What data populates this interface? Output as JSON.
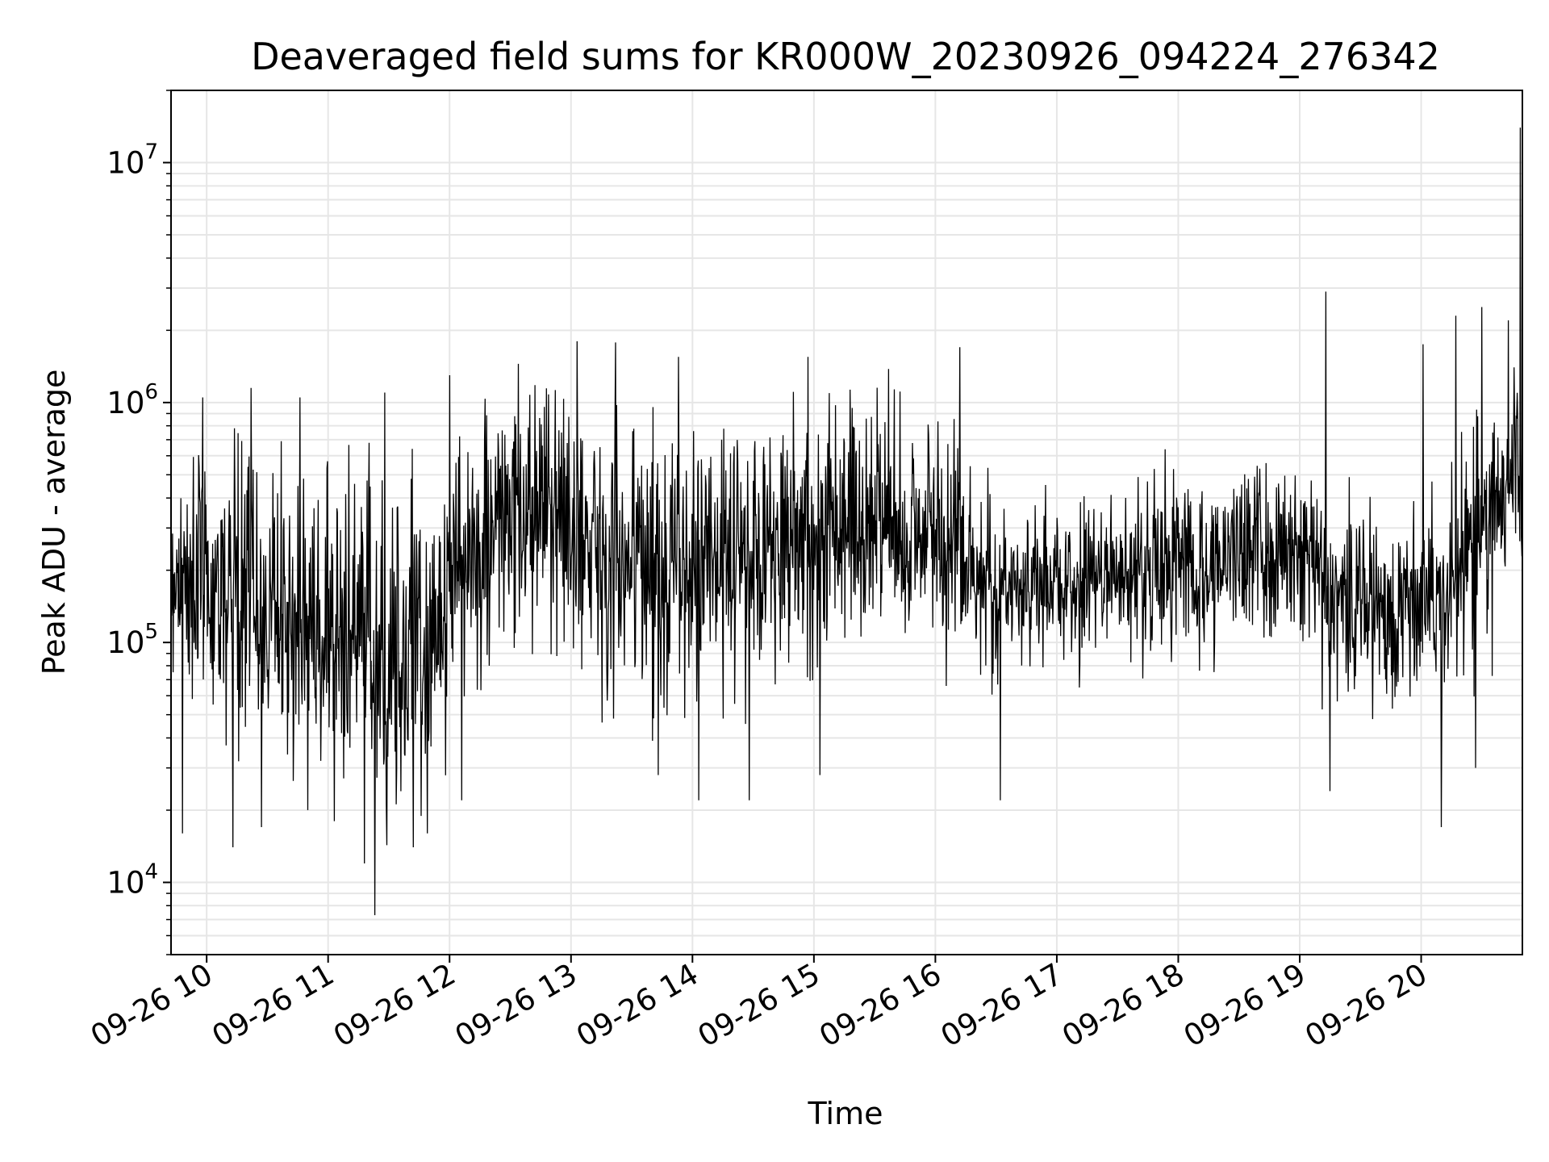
{
  "chart_data": {
    "type": "line",
    "title": "Deaveraged field sums for KR000W_20230926_094224_276342",
    "xlabel": "Time",
    "ylabel": "Peak ADU - average",
    "y_scale": "log",
    "grid": true,
    "line_color": "#000000",
    "grid_color": "#e6e6e6",
    "xlim": [
      "2023-09-26T09:42:24",
      "2023-09-26T20:50:00"
    ],
    "ylim": [
      5000,
      20000000
    ],
    "x_ticks": [
      {
        "value": "2023-09-26T10:00",
        "label": "09-26 10"
      },
      {
        "value": "2023-09-26T11:00",
        "label": "09-26 11"
      },
      {
        "value": "2023-09-26T12:00",
        "label": "09-26 12"
      },
      {
        "value": "2023-09-26T13:00",
        "label": "09-26 13"
      },
      {
        "value": "2023-09-26T14:00",
        "label": "09-26 14"
      },
      {
        "value": "2023-09-26T15:00",
        "label": "09-26 15"
      },
      {
        "value": "2023-09-26T16:00",
        "label": "09-26 16"
      },
      {
        "value": "2023-09-26T17:00",
        "label": "09-26 17"
      },
      {
        "value": "2023-09-26T18:00",
        "label": "09-26 18"
      },
      {
        "value": "2023-09-26T19:00",
        "label": "09-26 19"
      },
      {
        "value": "2023-09-26T20:00",
        "label": "09-26 20"
      }
    ],
    "y_ticks": [
      {
        "value": 10000,
        "base": "10",
        "exp": "4"
      },
      {
        "value": 100000,
        "base": "10",
        "exp": "5"
      },
      {
        "value": 1000000,
        "base": "10",
        "exp": "6"
      },
      {
        "value": 10000000,
        "base": "10",
        "exp": "7"
      }
    ],
    "series": [
      {
        "x": [
          "2023-09-26T09:42",
          "2023-09-26T09:50",
          "2023-09-26T10:00",
          "2023-09-26T10:10",
          "2023-09-26T10:20",
          "2023-09-26T10:30",
          "2023-09-26T10:40",
          "2023-09-26T10:50",
          "2023-09-26T11:00",
          "2023-09-26T11:10",
          "2023-09-26T11:20",
          "2023-09-26T11:30",
          "2023-09-26T11:40",
          "2023-09-26T11:50",
          "2023-09-26T12:00",
          "2023-09-26T12:10",
          "2023-09-26T12:20",
          "2023-09-26T12:30",
          "2023-09-26T12:40",
          "2023-09-26T12:50",
          "2023-09-26T13:00",
          "2023-09-26T13:10",
          "2023-09-26T13:20",
          "2023-09-26T13:30",
          "2023-09-26T13:40",
          "2023-09-26T13:50",
          "2023-09-26T14:00",
          "2023-09-26T14:10",
          "2023-09-26T14:20",
          "2023-09-26T14:30",
          "2023-09-26T14:40",
          "2023-09-26T14:50",
          "2023-09-26T15:00",
          "2023-09-26T15:10",
          "2023-09-26T15:20",
          "2023-09-26T15:30",
          "2023-09-26T15:40",
          "2023-09-26T15:50",
          "2023-09-26T16:00",
          "2023-09-26T16:10",
          "2023-09-26T16:20",
          "2023-09-26T16:30",
          "2023-09-26T16:40",
          "2023-09-26T16:50",
          "2023-09-26T17:00",
          "2023-09-26T17:10",
          "2023-09-26T17:20",
          "2023-09-26T17:30",
          "2023-09-26T17:40",
          "2023-09-26T17:50",
          "2023-09-26T18:00",
          "2023-09-26T18:10",
          "2023-09-26T18:20",
          "2023-09-26T18:30",
          "2023-09-26T18:40",
          "2023-09-26T18:50",
          "2023-09-26T19:00",
          "2023-09-26T19:10",
          "2023-09-26T19:20",
          "2023-09-26T19:30",
          "2023-09-26T19:40",
          "2023-09-26T19:50",
          "2023-09-26T20:00",
          "2023-09-26T20:10",
          "2023-09-26T20:20",
          "2023-09-26T20:30",
          "2023-09-26T20:40",
          "2023-09-26T20:50"
        ],
        "y_center": [
          200000,
          190000,
          170000,
          160000,
          150000,
          140000,
          130000,
          120000,
          110000,
          110000,
          100000,
          95000,
          90000,
          110000,
          160000,
          220000,
          290000,
          320000,
          330000,
          320000,
          310000,
          270000,
          240000,
          220000,
          210000,
          200000,
          200000,
          210000,
          230000,
          250000,
          270000,
          280000,
          290000,
          300000,
          310000,
          310000,
          300000,
          290000,
          280000,
          250000,
          210000,
          180000,
          170000,
          170000,
          170000,
          175000,
          180000,
          190000,
          200000,
          210000,
          210000,
          210000,
          220000,
          240000,
          250000,
          240000,
          220000,
          190000,
          170000,
          150000,
          140000,
          140000,
          150000,
          170000,
          220000,
          300000,
          420000,
          550000
        ],
        "y_low": [
          60000,
          50000,
          40000,
          40000,
          35000,
          35000,
          30000,
          28000,
          25000,
          25000,
          22000,
          20000,
          20000,
          25000,
          40000,
          55000,
          70000,
          80000,
          85000,
          80000,
          75000,
          65000,
          60000,
          55000,
          55000,
          55000,
          55000,
          55000,
          60000,
          65000,
          70000,
          70000,
          72000,
          75000,
          80000,
          80000,
          75000,
          72000,
          70000,
          65000,
          70000,
          80000,
          85000,
          85000,
          90000,
          90000,
          95000,
          100000,
          100000,
          100000,
          100000,
          100000,
          100000,
          100000,
          95000,
          90000,
          80000,
          70000,
          60000,
          55000,
          50000,
          50000,
          50000,
          55000,
          60000,
          80000,
          120000,
          200000
        ],
        "y_high": [
          550000,
          560000,
          600000,
          620000,
          620000,
          600000,
          580000,
          560000,
          560000,
          560000,
          540000,
          520000,
          500000,
          560000,
          650000,
          750000,
          850000,
          900000,
          950000,
          900000,
          880000,
          820000,
          780000,
          760000,
          760000,
          760000,
          760000,
          780000,
          800000,
          820000,
          860000,
          880000,
          900000,
          920000,
          950000,
          950000,
          900000,
          860000,
          820000,
          700000,
          500000,
          380000,
          360000,
          360000,
          360000,
          380000,
          420000,
          460000,
          480000,
          500000,
          520000,
          520000,
          540000,
          580000,
          600000,
          580000,
          540000,
          460000,
          420000,
          380000,
          360000,
          360000,
          400000,
          450000,
          600000,
          800000,
          1000000,
          1200000
        ]
      }
    ],
    "spikes_high": [
      {
        "x": "2023-09-26T09:58",
        "y": 1050000
      },
      {
        "x": "2023-09-26T10:22",
        "y": 1150000
      },
      {
        "x": "2023-09-26T10:46",
        "y": 1050000
      },
      {
        "x": "2023-09-26T11:28",
        "y": 1100000
      },
      {
        "x": "2023-09-26T12:00",
        "y": 1300000
      },
      {
        "x": "2023-09-26T12:34",
        "y": 1450000
      },
      {
        "x": "2023-09-26T13:03",
        "y": 1800000
      },
      {
        "x": "2023-09-26T13:22",
        "y": 1780000
      },
      {
        "x": "2023-09-26T13:53",
        "y": 1550000
      },
      {
        "x": "2023-09-26T14:57",
        "y": 1550000
      },
      {
        "x": "2023-09-26T15:37",
        "y": 1380000
      },
      {
        "x": "2023-09-26T16:12",
        "y": 1700000
      },
      {
        "x": "2023-09-26T19:13",
        "y": 2900000
      },
      {
        "x": "2023-09-26T20:01",
        "y": 1750000
      },
      {
        "x": "2023-09-26T20:17",
        "y": 2300000
      },
      {
        "x": "2023-09-26T20:30",
        "y": 2500000
      },
      {
        "x": "2023-09-26T20:43",
        "y": 2200000
      },
      {
        "x": "2023-09-26T20:49",
        "y": 14000000
      }
    ],
    "spikes_low": [
      {
        "x": "2023-09-26T09:48",
        "y": 16000
      },
      {
        "x": "2023-09-26T10:13",
        "y": 14000
      },
      {
        "x": "2023-09-26T10:27",
        "y": 17000
      },
      {
        "x": "2023-09-26T11:03",
        "y": 18000
      },
      {
        "x": "2023-09-26T11:18",
        "y": 12000
      },
      {
        "x": "2023-09-26T11:23",
        "y": 7300
      },
      {
        "x": "2023-09-26T11:42",
        "y": 14000
      },
      {
        "x": "2023-09-26T11:49",
        "y": 16000
      },
      {
        "x": "2023-09-26T12:06",
        "y": 22000
      },
      {
        "x": "2023-09-26T13:43",
        "y": 28000
      },
      {
        "x": "2023-09-26T14:03",
        "y": 22000
      },
      {
        "x": "2023-09-26T14:28",
        "y": 22000
      },
      {
        "x": "2023-09-26T15:03",
        "y": 28000
      },
      {
        "x": "2023-09-26T16:32",
        "y": 22000
      },
      {
        "x": "2023-09-26T19:15",
        "y": 24000
      },
      {
        "x": "2023-09-26T20:10",
        "y": 17000
      },
      {
        "x": "2023-09-26T20:27",
        "y": 30000
      }
    ]
  }
}
